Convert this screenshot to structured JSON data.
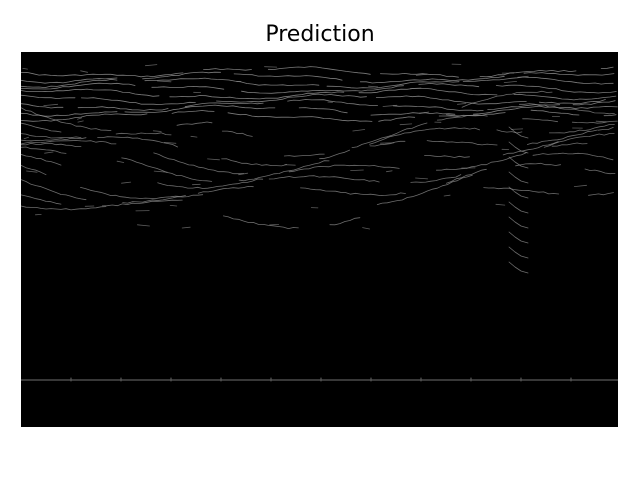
{
  "figure": {
    "title": "Prediction",
    "background_color": "#ffffff",
    "image_background_color": "#000000",
    "line_color": "#9a9a9a"
  }
}
